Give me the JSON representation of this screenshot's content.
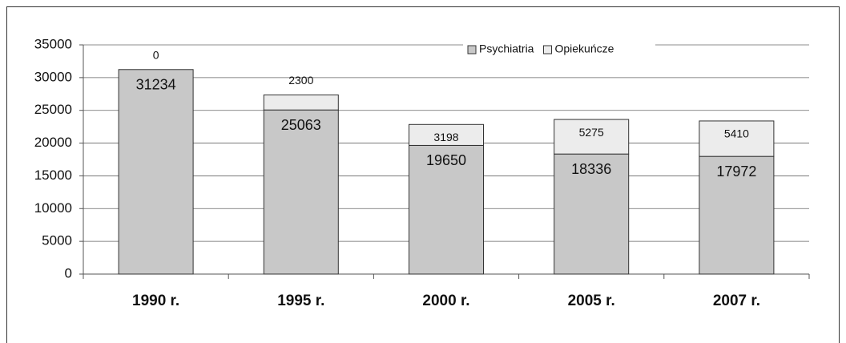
{
  "chart_data": {
    "type": "stacked_bar",
    "categories": [
      "1990 r.",
      "1995 r.",
      "2000 r.",
      "2005 r.",
      "2007 r."
    ],
    "series": [
      {
        "name": "Psychiatria",
        "color": "#c8c8c8",
        "values": [
          31234,
          25063,
          19650,
          18336,
          17972
        ]
      },
      {
        "name": "Opiekuńcze",
        "color": "#ececec",
        "values": [
          0,
          2300,
          3198,
          5275,
          5410
        ]
      }
    ],
    "ylim": [
      0,
      35000
    ],
    "yticks": [
      0,
      5000,
      10000,
      15000,
      20000,
      25000,
      30000,
      35000
    ],
    "grid": true,
    "legend": "top"
  }
}
